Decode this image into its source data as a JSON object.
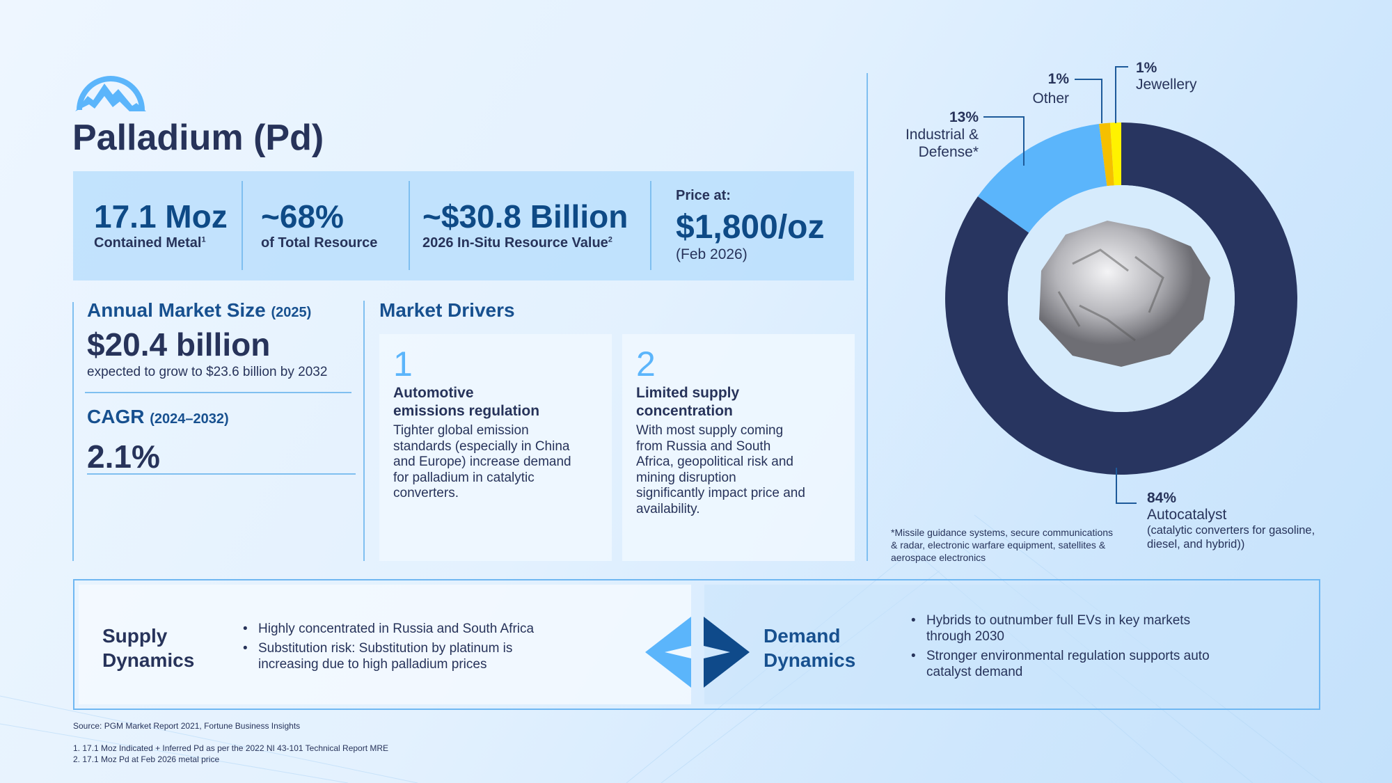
{
  "header": {
    "title": "Palladium (Pd)",
    "logo": "mountain-logo"
  },
  "stats": [
    {
      "value": "17.1 Moz",
      "label": "Contained Metal",
      "sup": "1"
    },
    {
      "value": "~68%",
      "label": "of Total Resource"
    },
    {
      "value": "~$30.8 Billion",
      "label": "2026 In-Situ Resource Value",
      "sup": "2"
    },
    {
      "pre": "Price at:",
      "value": "$1,800/oz",
      "label": "(Feb 2026)"
    }
  ],
  "market": {
    "size_title": "Annual Market Size",
    "size_year": "(2025)",
    "size_value": "$20.4 billion",
    "size_note": "expected to grow to $23.6 billion by 2032",
    "cagr_title": "CAGR",
    "cagr_years": "(2024–2032)",
    "cagr_value": "2.1%"
  },
  "drivers": {
    "title": "Market Drivers",
    "items": [
      {
        "num": "1",
        "title": "Automotive emissions regulation",
        "body": "Tighter global emission standards (especially in China and Europe) increase demand for palladium in catalytic converters."
      },
      {
        "num": "2",
        "title": "Limited supply concentration",
        "body": "With most supply coming from Russia and South Africa, geopolitical risk and mining disruption significantly impact price and availability."
      }
    ]
  },
  "chart_data": {
    "type": "pie",
    "donut": true,
    "categories": [
      "Autocatalyst",
      "Industrial & Defense*",
      "Other",
      "Jewellery"
    ],
    "values": [
      84,
      13,
      1,
      1
    ],
    "labels": [
      "84%",
      "13%",
      "1%",
      "1%"
    ],
    "colors": [
      "#283560",
      "#5bb5fb",
      "#f5c000",
      "#fff200"
    ],
    "autocatalyst_note": "(catalytic converters for gasoline, diesel, and hybrid))",
    "footnote": "*Missile guidance systems, secure communications & radar, electronic warfare equipment, satellites & aerospace electronics"
  },
  "dynamics": {
    "supply_title": [
      "Supply",
      "Dynamics"
    ],
    "supply_items": [
      "Highly concentrated in Russia and South Africa",
      "Substitution risk: Substitution by platinum is increasing due to high palladium prices"
    ],
    "demand_title": [
      "Demand",
      "Dynamics"
    ],
    "demand_items": [
      "Hybrids to outnumber full EVs in key markets through 2030",
      "Stronger environmental regulation supports auto catalyst demand"
    ]
  },
  "footer": {
    "source": "Source: PGM Market Report 2021, Fortune Business Insights",
    "notes": [
      "1.  17.1 Moz Indicated + Inferred Pd as per the 2022 NI 43-101 Technical Report MRE",
      "2.  17.1 Moz Pd at Feb 2026 metal price"
    ]
  }
}
